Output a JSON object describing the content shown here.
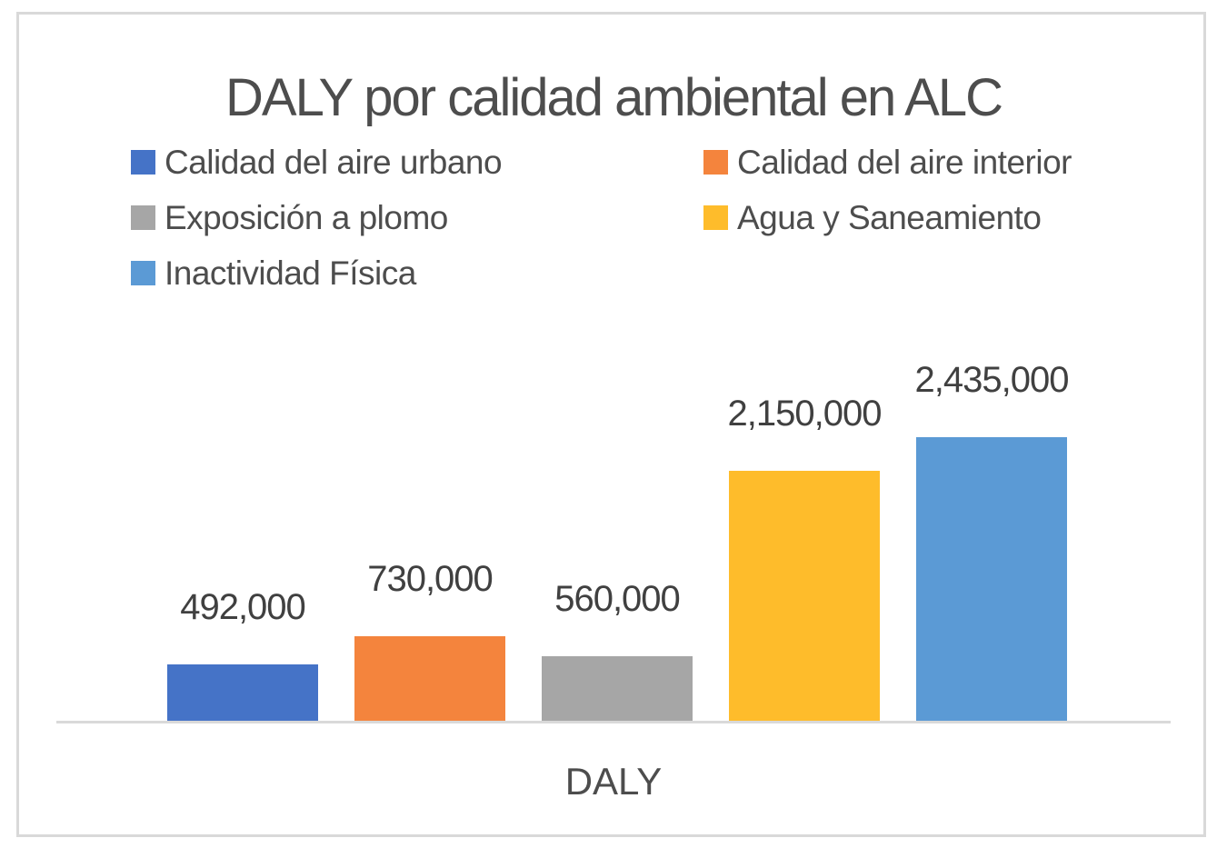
{
  "chart_data": {
    "type": "bar",
    "title": "DALY por calidad ambiental en ALC",
    "xlabel": "DALY",
    "ylabel": "",
    "categories": [
      "DALY"
    ],
    "series": [
      {
        "name": "Calidad del aire urbano",
        "values": [
          492000
        ],
        "value_label": "492,000",
        "color": "#4573c7"
      },
      {
        "name": "Calidad del aire interior",
        "values": [
          730000
        ],
        "value_label": "730,000",
        "color": "#f4843d"
      },
      {
        "name": "Exposición a plomo",
        "values": [
          560000
        ],
        "value_label": "560,000",
        "color": "#a6a6a6"
      },
      {
        "name": "Agua y Saneamiento",
        "values": [
          2150000
        ],
        "value_label": "2,150,000",
        "color": "#febc2b"
      },
      {
        "name": "Inactividad Física",
        "values": [
          2435000
        ],
        "value_label": "2,435,000",
        "color": "#5b9ad5"
      }
    ],
    "ylim": [
      0,
      2435000
    ],
    "grid": false,
    "data_labels": true,
    "legend_position": "top",
    "legend_columns": 2
  },
  "colors": {
    "axis_line": "#d9d9d9",
    "frame_border": "#d9d9d9",
    "title_text": "#4d4d4d",
    "label_text": "#404040",
    "background": "#ffffff"
  }
}
